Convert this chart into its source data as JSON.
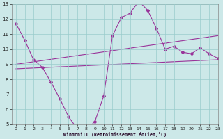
{
  "xlabel": "Windchill (Refroidissement éolien,°C)",
  "zigzag_x": [
    0,
    1,
    2,
    3,
    4,
    5,
    6,
    7,
    8,
    9,
    10,
    11,
    12,
    13,
    14,
    15,
    16,
    17,
    18,
    19,
    20,
    21,
    22,
    23
  ],
  "zigzag_y": [
    11.7,
    10.6,
    9.3,
    8.8,
    7.8,
    6.7,
    5.5,
    4.7,
    4.6,
    5.2,
    6.9,
    10.9,
    12.1,
    12.4,
    13.2,
    12.6,
    11.4,
    10.0,
    10.2,
    9.8,
    9.7,
    10.1,
    9.7,
    9.4
  ],
  "trend1_x": [
    0,
    23
  ],
  "trend1_y": [
    8.7,
    9.3
  ],
  "trend2_x": [
    0,
    23
  ],
  "trend2_y": [
    9.0,
    10.9
  ],
  "bg_color": "#cce8e8",
  "grid_color": "#99cccc",
  "line_color": "#993399",
  "ylim": [
    5,
    13
  ],
  "xlim": [
    -0.5,
    23
  ],
  "yticks": [
    5,
    6,
    7,
    8,
    9,
    10,
    11,
    12,
    13
  ],
  "xticks": [
    0,
    1,
    2,
    3,
    4,
    5,
    6,
    7,
    8,
    9,
    10,
    11,
    12,
    13,
    14,
    15,
    16,
    17,
    18,
    19,
    20,
    21,
    22,
    23
  ]
}
